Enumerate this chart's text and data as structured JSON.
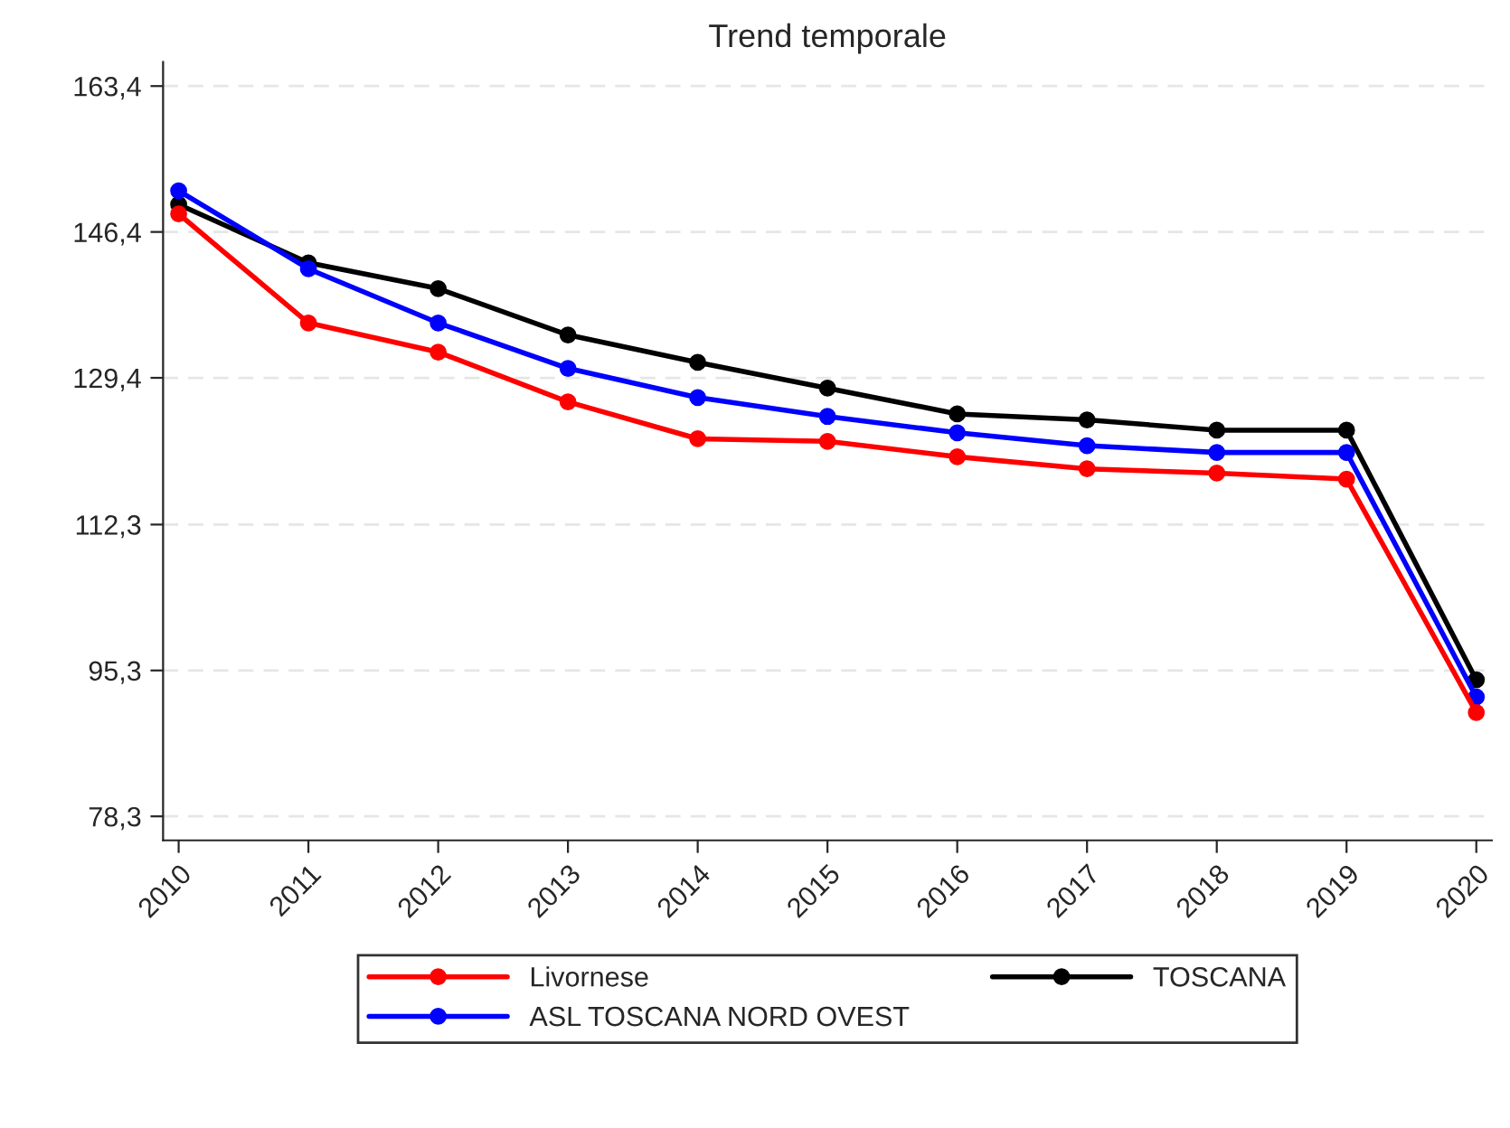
{
  "chart_data": {
    "type": "line",
    "title": "Trend temporale",
    "categories": [
      "2010",
      "2011",
      "2012",
      "2013",
      "2014",
      "2015",
      "2016",
      "2017",
      "2018",
      "2019",
      "2020"
    ],
    "series": [
      {
        "name": "Livornese",
        "color": "#ff0000",
        "values": [
          148.5,
          135.8,
          132.4,
          126.6,
          122.3,
          122.0,
          120.2,
          118.8,
          118.3,
          117.6,
          90.4
        ]
      },
      {
        "name": "ASL TOSCANA NORD OVEST",
        "color": "#0000ff",
        "values": [
          151.2,
          142.1,
          135.8,
          130.5,
          127.1,
          124.9,
          123.0,
          121.5,
          120.7,
          120.7,
          92.2
        ]
      },
      {
        "name": "TOSCANA",
        "color": "#000000",
        "values": [
          149.6,
          142.8,
          139.8,
          134.4,
          131.2,
          128.2,
          125.2,
          124.5,
          123.3,
          123.3,
          94.2
        ]
      }
    ],
    "ylim": [
      75.5,
      166.2
    ],
    "yticks": [
      {
        "value": 78.3,
        "label": "78,3"
      },
      {
        "value": 95.3,
        "label": "95,3"
      },
      {
        "value": 112.3,
        "label": "112,3"
      },
      {
        "value": 129.4,
        "label": "129,4"
      },
      {
        "value": 146.4,
        "label": "146,4"
      },
      {
        "value": 163.4,
        "label": "163,4"
      }
    ],
    "grid": "y",
    "legend": "bottom",
    "marker": "circle",
    "line_style": "solid"
  }
}
